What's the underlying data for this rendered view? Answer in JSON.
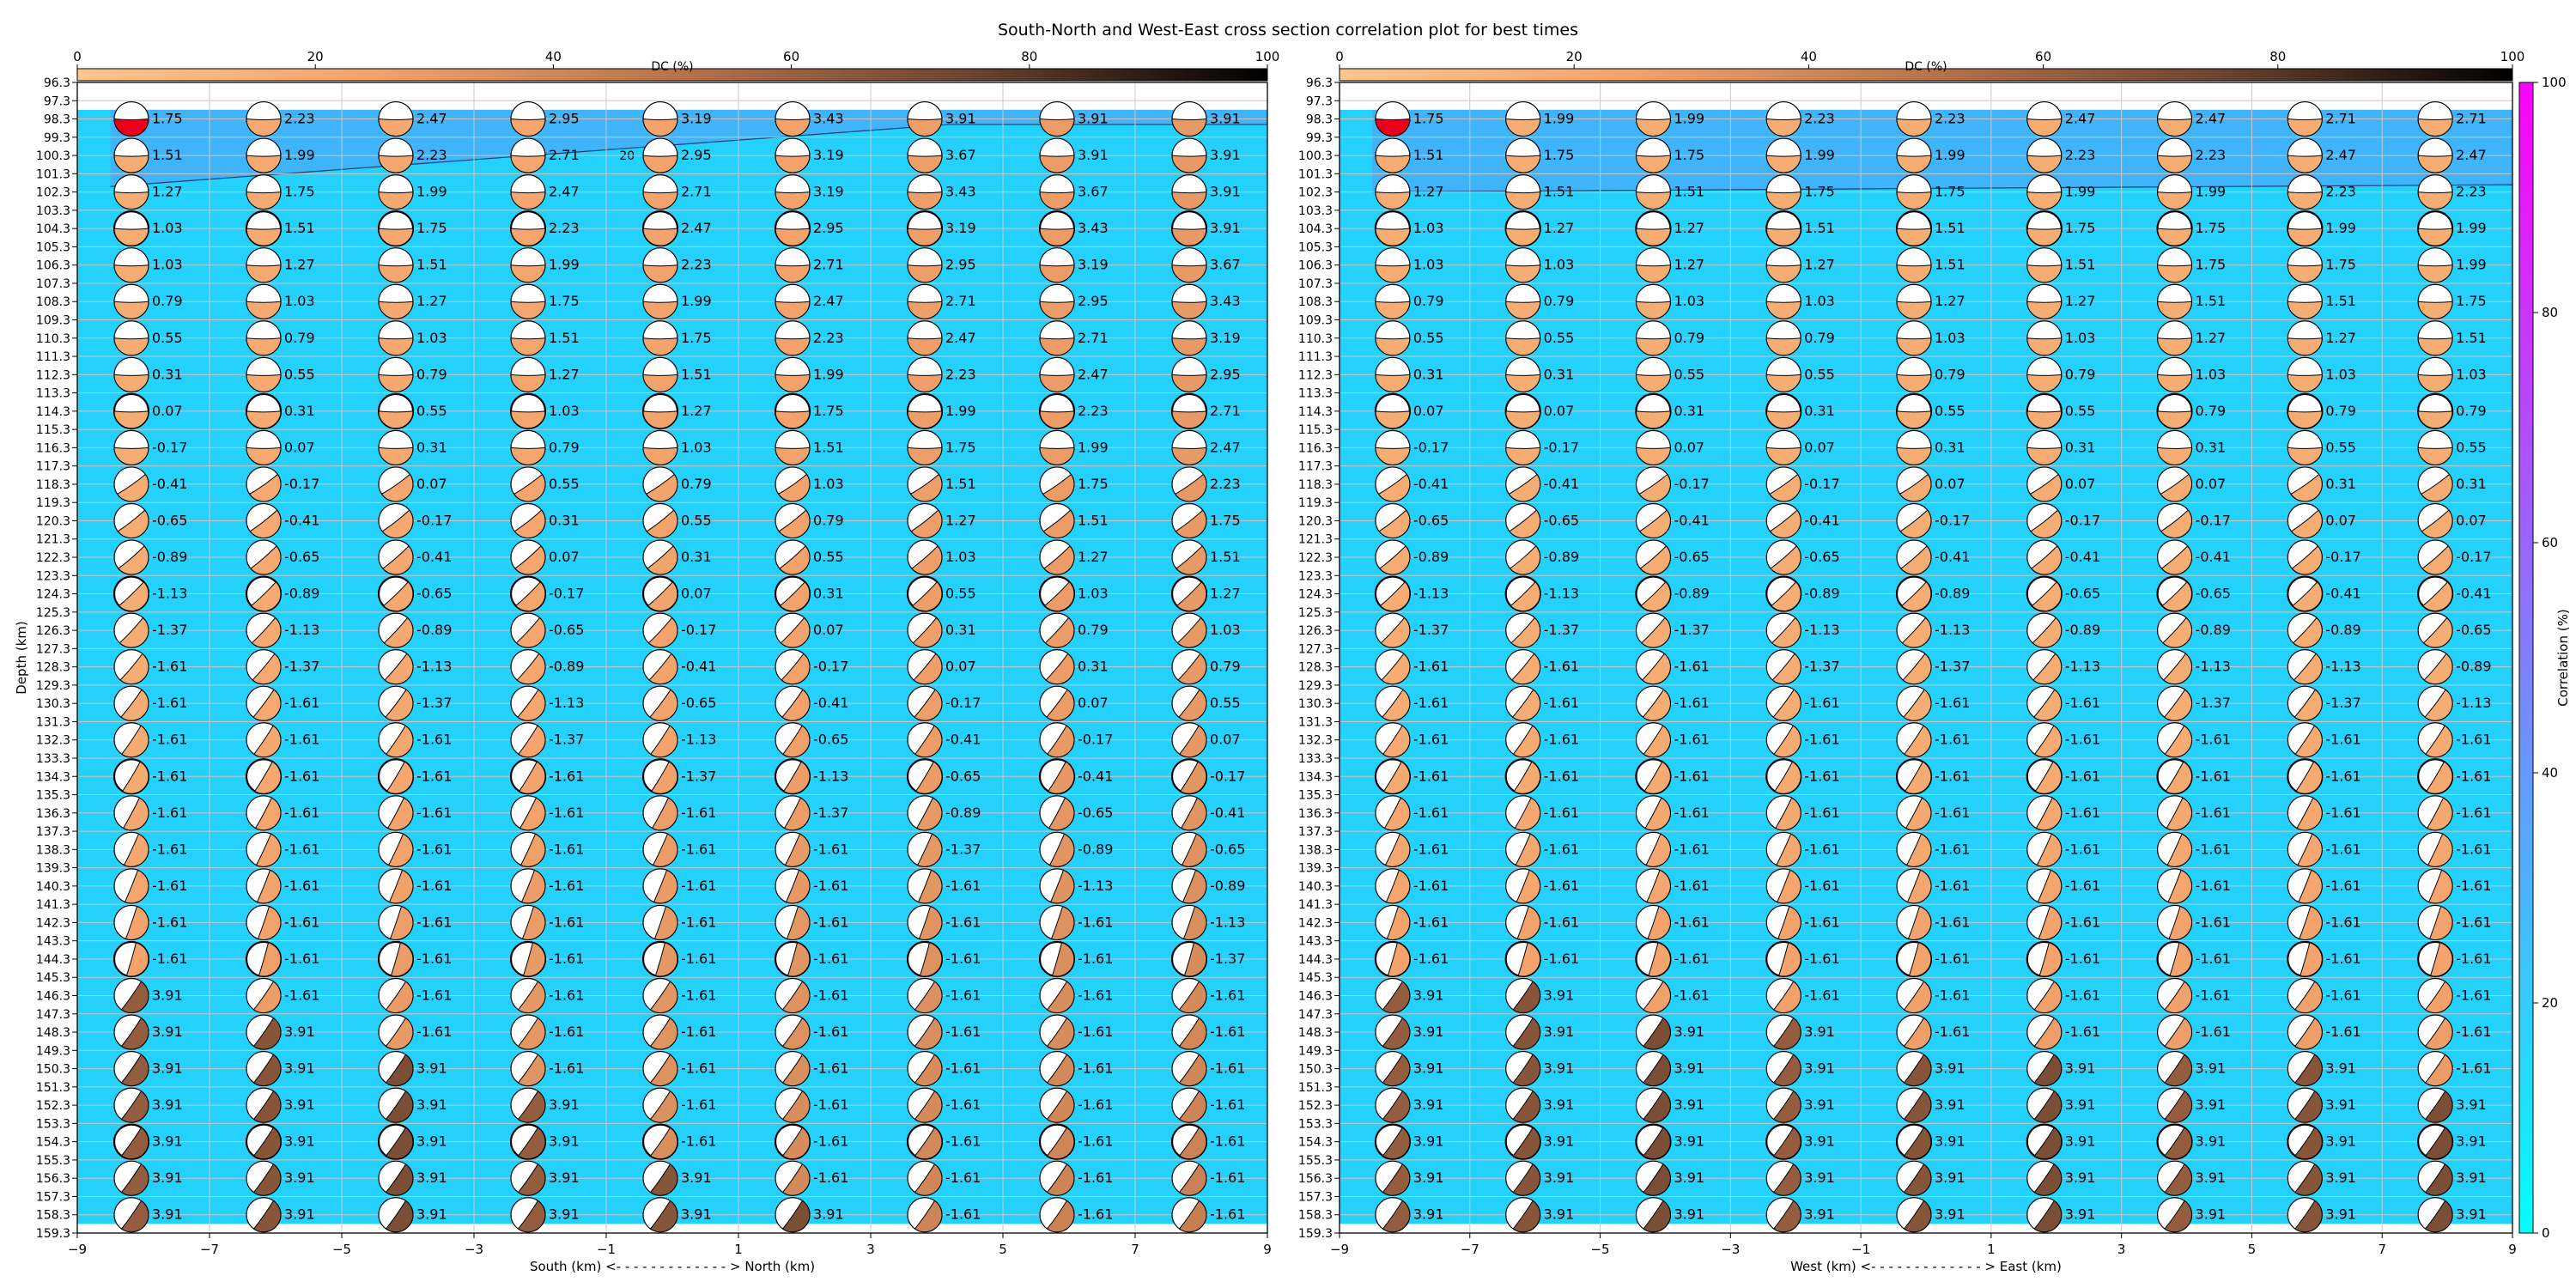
{
  "title": "South-North and West-East cross section correlation plot for best times",
  "colors": {
    "panel_top": "#40b4fb",
    "panel_main": "#23d1fc",
    "correlation_cmap": [
      "#00ffff",
      "#ff00ff"
    ],
    "dc_cmap": [
      "#ffc58c",
      "#f3a36b",
      "#b8744c",
      "#6c4430",
      "#000000"
    ],
    "beachball_white": "#ffffff",
    "beachball_red": "#e8001c"
  },
  "chart_data": [
    {
      "type": "heatmap",
      "name": "South-North cross section",
      "xlabel": "South (km) <- - - - - - - - - - - - - > North (km)",
      "ylabel": "Depth (km)",
      "xlim": [
        -9,
        9
      ],
      "ylim": [
        159.3,
        96.3
      ],
      "x_ticks": [
        -9,
        -7,
        -5,
        -3,
        -1,
        1,
        3,
        5,
        7,
        9
      ],
      "y_ticks": [
        96.3,
        97.3,
        98.3,
        99.3,
        100.3,
        101.3,
        102.3,
        103.3,
        104.3,
        105.3,
        106.3,
        107.3,
        108.3,
        109.3,
        110.3,
        111.3,
        112.3,
        113.3,
        114.3,
        115.3,
        116.3,
        117.3,
        118.3,
        119.3,
        120.3,
        121.3,
        122.3,
        123.3,
        124.3,
        125.3,
        126.3,
        127.3,
        128.3,
        129.3,
        130.3,
        131.3,
        132.3,
        133.3,
        134.3,
        135.3,
        136.3,
        137.3,
        138.3,
        139.3,
        140.3,
        141.3,
        142.3,
        143.3,
        144.3,
        145.3,
        146.3,
        147.3,
        148.3,
        149.3,
        150.3,
        151.3,
        152.3,
        153.3,
        154.3,
        155.3,
        156.3,
        157.3,
        158.3,
        159.3
      ],
      "x_positions": [
        -8,
        -6,
        -4,
        -2,
        0,
        2,
        4,
        6,
        8
      ],
      "depths": [
        98.3,
        100.3,
        102.3,
        104.3,
        106.3,
        108.3,
        110.3,
        112.3,
        114.3,
        116.3,
        118.3,
        120.3,
        122.3,
        124.3,
        126.3,
        128.3,
        130.3,
        132.3,
        134.3,
        136.3,
        138.3,
        140.3,
        142.3,
        144.3,
        146.3,
        148.3,
        150.3,
        152.3,
        154.3,
        156.3,
        158.3
      ],
      "best_time_labels": [
        [
          "1.75",
          "2.23",
          "2.47",
          "2.95",
          "3.19",
          "3.43",
          "3.91",
          "3.91",
          "3.91"
        ],
        [
          "1.51",
          "1.99",
          "2.23",
          "2.71",
          "2.95",
          "3.19",
          "3.67",
          "3.91",
          "3.91"
        ],
        [
          "1.27",
          "1.75",
          "1.99",
          "2.47",
          "2.71",
          "3.19",
          "3.43",
          "3.67",
          "3.91"
        ],
        [
          "1.03",
          "1.51",
          "1.75",
          "2.23",
          "2.47",
          "2.95",
          "3.19",
          "3.43",
          "3.91"
        ],
        [
          "1.03",
          "1.27",
          "1.51",
          "1.99",
          "2.23",
          "2.71",
          "2.95",
          "3.19",
          "3.67"
        ],
        [
          "0.79",
          "1.03",
          "1.27",
          "1.75",
          "1.99",
          "2.47",
          "2.71",
          "2.95",
          "3.43"
        ],
        [
          "0.55",
          "0.79",
          "1.03",
          "1.51",
          "1.75",
          "2.23",
          "2.47",
          "2.71",
          "3.19"
        ],
        [
          "0.31",
          "0.55",
          "0.79",
          "1.27",
          "1.51",
          "1.99",
          "2.23",
          "2.47",
          "2.95"
        ],
        [
          "0.07",
          "0.31",
          "0.55",
          "1.03",
          "1.27",
          "1.75",
          "1.99",
          "2.23",
          "2.71"
        ],
        [
          "-0.17",
          "0.07",
          "0.31",
          "0.79",
          "1.03",
          "1.51",
          "1.75",
          "1.99",
          "2.47"
        ],
        [
          "-0.41",
          "-0.17",
          "0.07",
          "0.55",
          "0.79",
          "1.03",
          "1.51",
          "1.75",
          "2.23"
        ],
        [
          "-0.65",
          "-0.41",
          "-0.17",
          "0.31",
          "0.55",
          "0.79",
          "1.27",
          "1.51",
          "1.75"
        ],
        [
          "-0.89",
          "-0.65",
          "-0.41",
          "0.07",
          "0.31",
          "0.55",
          "1.03",
          "1.27",
          "1.51"
        ],
        [
          "-1.13",
          "-0.89",
          "-0.65",
          "-0.17",
          "0.07",
          "0.31",
          "0.55",
          "1.03",
          "1.27"
        ],
        [
          "-1.37",
          "-1.13",
          "-0.89",
          "-0.65",
          "-0.17",
          "0.07",
          "0.31",
          "0.79",
          "1.03"
        ],
        [
          "-1.61",
          "-1.37",
          "-1.13",
          "-0.89",
          "-0.41",
          "-0.17",
          "0.07",
          "0.31",
          "0.79"
        ],
        [
          "-1.61",
          "-1.61",
          "-1.37",
          "-1.13",
          "-0.65",
          "-0.41",
          "-0.17",
          "0.07",
          "0.55"
        ],
        [
          "-1.61",
          "-1.61",
          "-1.61",
          "-1.37",
          "-1.13",
          "-0.65",
          "-0.41",
          "-0.17",
          "0.07"
        ],
        [
          "-1.61",
          "-1.61",
          "-1.61",
          "-1.61",
          "-1.37",
          "-1.13",
          "-0.65",
          "-0.41",
          "-0.17"
        ],
        [
          "-1.61",
          "-1.61",
          "-1.61",
          "-1.61",
          "-1.61",
          "-1.37",
          "-0.89",
          "-0.65",
          "-0.41"
        ],
        [
          "-1.61",
          "-1.61",
          "-1.61",
          "-1.61",
          "-1.61",
          "-1.61",
          "-1.37",
          "-0.89",
          "-0.65"
        ],
        [
          "-1.61",
          "-1.61",
          "-1.61",
          "-1.61",
          "-1.61",
          "-1.61",
          "-1.61",
          "-1.13",
          "-0.89"
        ],
        [
          "-1.61",
          "-1.61",
          "-1.61",
          "-1.61",
          "-1.61",
          "-1.61",
          "-1.61",
          "-1.61",
          "-1.13"
        ],
        [
          "-1.61",
          "-1.61",
          "-1.61",
          "-1.61",
          "-1.61",
          "-1.61",
          "-1.61",
          "-1.61",
          "-1.37"
        ],
        [
          "3.91",
          "-1.61",
          "-1.61",
          "-1.61",
          "-1.61",
          "-1.61",
          "-1.61",
          "-1.61",
          "-1.61"
        ],
        [
          "3.91",
          "3.91",
          "-1.61",
          "-1.61",
          "-1.61",
          "-1.61",
          "-1.61",
          "-1.61",
          "-1.61"
        ],
        [
          "3.91",
          "3.91",
          "3.91",
          "-1.61",
          "-1.61",
          "-1.61",
          "-1.61",
          "-1.61",
          "-1.61"
        ],
        [
          "3.91",
          "3.91",
          "3.91",
          "3.91",
          "-1.61",
          "-1.61",
          "-1.61",
          "-1.61",
          "-1.61"
        ],
        [
          "3.91",
          "3.91",
          "3.91",
          "3.91",
          "-1.61",
          "-1.61",
          "-1.61",
          "-1.61",
          "-1.61"
        ],
        [
          "3.91",
          "3.91",
          "3.91",
          "3.91",
          "3.91",
          "-1.61",
          "-1.61",
          "-1.61",
          "-1.61"
        ],
        [
          "3.91",
          "3.91",
          "3.91",
          "3.91",
          "3.91",
          "3.91",
          "-1.61",
          "-1.61",
          "-1.61"
        ]
      ],
      "contour_label": "20",
      "dc_colorbar": {
        "label": "DC (%)",
        "ticks": [
          0,
          20,
          40,
          60,
          80,
          100
        ]
      }
    },
    {
      "type": "heatmap",
      "name": "West-East cross section",
      "xlabel": "West (km) <- - - - - - - - - - - - - > East (km)",
      "ylabel": "",
      "xlim": [
        -9,
        9
      ],
      "ylim": [
        159.3,
        96.3
      ],
      "x_ticks": [
        -9,
        -7,
        -5,
        -3,
        -1,
        1,
        3,
        5,
        7,
        9
      ],
      "y_ticks": [
        96.3,
        97.3,
        98.3,
        99.3,
        100.3,
        101.3,
        102.3,
        103.3,
        104.3,
        105.3,
        106.3,
        107.3,
        108.3,
        109.3,
        110.3,
        111.3,
        112.3,
        113.3,
        114.3,
        115.3,
        116.3,
        117.3,
        118.3,
        119.3,
        120.3,
        121.3,
        122.3,
        123.3,
        124.3,
        125.3,
        126.3,
        127.3,
        128.3,
        129.3,
        130.3,
        131.3,
        132.3,
        133.3,
        134.3,
        135.3,
        136.3,
        137.3,
        138.3,
        139.3,
        140.3,
        141.3,
        142.3,
        143.3,
        144.3,
        145.3,
        146.3,
        147.3,
        148.3,
        149.3,
        150.3,
        151.3,
        152.3,
        153.3,
        154.3,
        155.3,
        156.3,
        157.3,
        158.3,
        159.3
      ],
      "x_positions": [
        -8,
        -6,
        -4,
        -2,
        0,
        2,
        4,
        6,
        8
      ],
      "depths": [
        98.3,
        100.3,
        102.3,
        104.3,
        106.3,
        108.3,
        110.3,
        112.3,
        114.3,
        116.3,
        118.3,
        120.3,
        122.3,
        124.3,
        126.3,
        128.3,
        130.3,
        132.3,
        134.3,
        136.3,
        138.3,
        140.3,
        142.3,
        144.3,
        146.3,
        148.3,
        150.3,
        152.3,
        154.3,
        156.3,
        158.3
      ],
      "best_time_labels": [
        [
          "1.75",
          "1.99",
          "1.99",
          "2.23",
          "2.23",
          "2.47",
          "2.47",
          "2.71",
          "2.71"
        ],
        [
          "1.51",
          "1.75",
          "1.75",
          "1.99",
          "1.99",
          "2.23",
          "2.23",
          "2.47",
          "2.47"
        ],
        [
          "1.27",
          "1.51",
          "1.51",
          "1.75",
          "1.75",
          "1.99",
          "1.99",
          "2.23",
          "2.23"
        ],
        [
          "1.03",
          "1.27",
          "1.27",
          "1.51",
          "1.51",
          "1.75",
          "1.75",
          "1.99",
          "1.99"
        ],
        [
          "1.03",
          "1.03",
          "1.27",
          "1.27",
          "1.51",
          "1.51",
          "1.75",
          "1.75",
          "1.99"
        ],
        [
          "0.79",
          "0.79",
          "1.03",
          "1.03",
          "1.27",
          "1.27",
          "1.51",
          "1.51",
          "1.75"
        ],
        [
          "0.55",
          "0.55",
          "0.79",
          "0.79",
          "1.03",
          "1.03",
          "1.27",
          "1.27",
          "1.51"
        ],
        [
          "0.31",
          "0.31",
          "0.55",
          "0.55",
          "0.79",
          "0.79",
          "1.03",
          "1.03",
          "1.03"
        ],
        [
          "0.07",
          "0.07",
          "0.31",
          "0.31",
          "0.55",
          "0.55",
          "0.79",
          "0.79",
          "0.79"
        ],
        [
          "-0.17",
          "-0.17",
          "0.07",
          "0.07",
          "0.31",
          "0.31",
          "0.31",
          "0.55",
          "0.55"
        ],
        [
          "-0.41",
          "-0.41",
          "-0.17",
          "-0.17",
          "0.07",
          "0.07",
          "0.07",
          "0.31",
          "0.31"
        ],
        [
          "-0.65",
          "-0.65",
          "-0.41",
          "-0.41",
          "-0.17",
          "-0.17",
          "-0.17",
          "0.07",
          "0.07"
        ],
        [
          "-0.89",
          "-0.89",
          "-0.65",
          "-0.65",
          "-0.41",
          "-0.41",
          "-0.41",
          "-0.17",
          "-0.17"
        ],
        [
          "-1.13",
          "-1.13",
          "-0.89",
          "-0.89",
          "-0.89",
          "-0.65",
          "-0.65",
          "-0.41",
          "-0.41"
        ],
        [
          "-1.37",
          "-1.37",
          "-1.37",
          "-1.13",
          "-1.13",
          "-0.89",
          "-0.89",
          "-0.89",
          "-0.65"
        ],
        [
          "-1.61",
          "-1.61",
          "-1.61",
          "-1.37",
          "-1.37",
          "-1.13",
          "-1.13",
          "-1.13",
          "-0.89"
        ],
        [
          "-1.61",
          "-1.61",
          "-1.61",
          "-1.61",
          "-1.61",
          "-1.61",
          "-1.37",
          "-1.37",
          "-1.13"
        ],
        [
          "-1.61",
          "-1.61",
          "-1.61",
          "-1.61",
          "-1.61",
          "-1.61",
          "-1.61",
          "-1.61",
          "-1.61"
        ],
        [
          "-1.61",
          "-1.61",
          "-1.61",
          "-1.61",
          "-1.61",
          "-1.61",
          "-1.61",
          "-1.61",
          "-1.61"
        ],
        [
          "-1.61",
          "-1.61",
          "-1.61",
          "-1.61",
          "-1.61",
          "-1.61",
          "-1.61",
          "-1.61",
          "-1.61"
        ],
        [
          "-1.61",
          "-1.61",
          "-1.61",
          "-1.61",
          "-1.61",
          "-1.61",
          "-1.61",
          "-1.61",
          "-1.61"
        ],
        [
          "-1.61",
          "-1.61",
          "-1.61",
          "-1.61",
          "-1.61",
          "-1.61",
          "-1.61",
          "-1.61",
          "-1.61"
        ],
        [
          "-1.61",
          "-1.61",
          "-1.61",
          "-1.61",
          "-1.61",
          "-1.61",
          "-1.61",
          "-1.61",
          "-1.61"
        ],
        [
          "-1.61",
          "-1.61",
          "-1.61",
          "-1.61",
          "-1.61",
          "-1.61",
          "-1.61",
          "-1.61",
          "-1.61"
        ],
        [
          "3.91",
          "3.91",
          "-1.61",
          "-1.61",
          "-1.61",
          "-1.61",
          "-1.61",
          "-1.61",
          "-1.61"
        ],
        [
          "3.91",
          "3.91",
          "3.91",
          "3.91",
          "-1.61",
          "-1.61",
          "-1.61",
          "-1.61",
          "-1.61"
        ],
        [
          "3.91",
          "3.91",
          "3.91",
          "3.91",
          "3.91",
          "3.91",
          "3.91",
          "3.91",
          "-1.61"
        ],
        [
          "3.91",
          "3.91",
          "3.91",
          "3.91",
          "3.91",
          "3.91",
          "3.91",
          "3.91",
          "3.91"
        ],
        [
          "3.91",
          "3.91",
          "3.91",
          "3.91",
          "3.91",
          "3.91",
          "3.91",
          "3.91",
          "3.91"
        ],
        [
          "3.91",
          "3.91",
          "3.91",
          "3.91",
          "3.91",
          "3.91",
          "3.91",
          "3.91",
          "3.91"
        ],
        [
          "3.91",
          "3.91",
          "3.91",
          "3.91",
          "3.91",
          "3.91",
          "3.91",
          "3.91",
          "3.91"
        ]
      ],
      "contour_label": "",
      "dc_colorbar": {
        "label": "DC (%)",
        "ticks": [
          0,
          20,
          40,
          60,
          80,
          100
        ]
      },
      "correlation_colorbar": {
        "label": "Correlation (%)",
        "ticks": [
          0,
          20,
          40,
          60,
          80,
          100
        ]
      }
    }
  ]
}
